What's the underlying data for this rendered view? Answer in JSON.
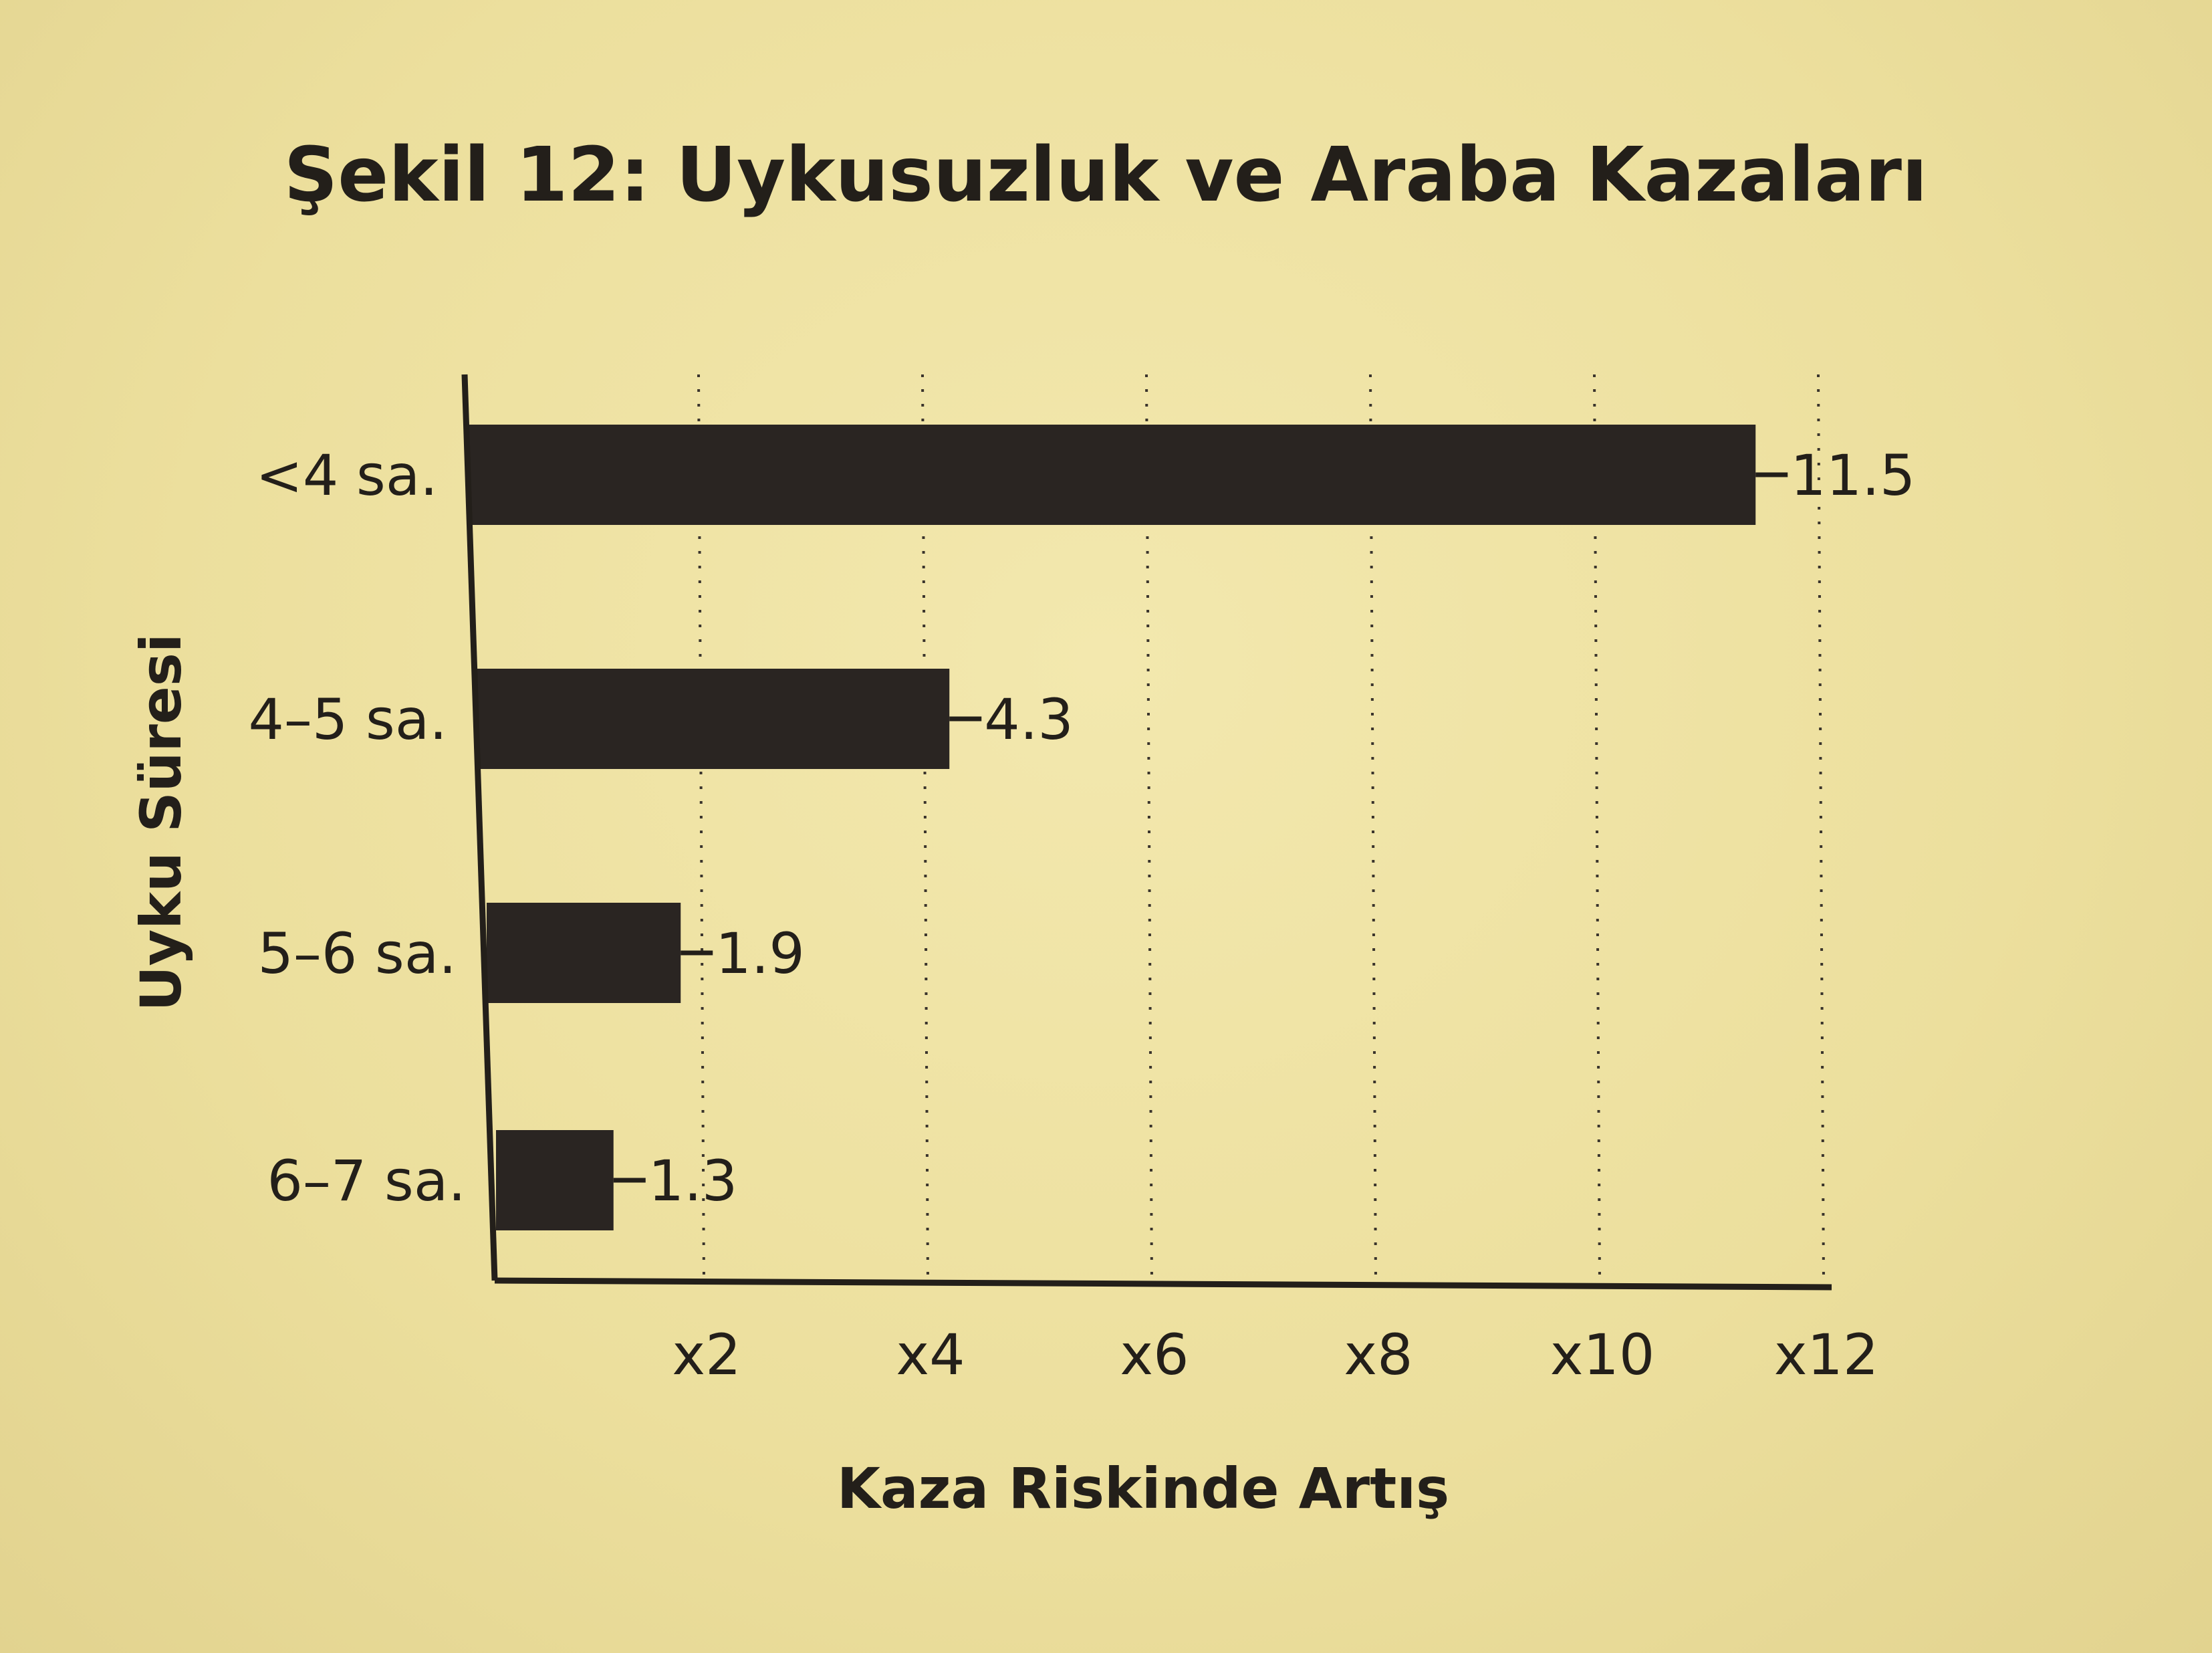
{
  "chart_data": {
    "type": "bar",
    "orientation": "horizontal",
    "title": "Şekil 12: Uykusuzluk ve Araba Kazaları",
    "xlabel": "Kaza Riskinde Artış",
    "ylabel": "Uyku Süresi",
    "categories": [
      "<4 sa.",
      "4–5 sa.",
      "5–6 sa.",
      "6–7 sa."
    ],
    "values": [
      11.5,
      4.3,
      1.9,
      1.3
    ],
    "value_labels": [
      "11.5",
      "4.3",
      "1.9",
      "1.3"
    ],
    "xlim": [
      0,
      12
    ],
    "xticks": [
      2,
      4,
      6,
      8,
      10,
      12
    ],
    "xtick_labels": [
      "x2",
      "x4",
      "x6",
      "x8",
      "x10",
      "x12"
    ],
    "grid": "vertical dotted",
    "bar_color": "#2a2522",
    "background_color": "#efe3a4",
    "text_color": "#231f1a"
  }
}
